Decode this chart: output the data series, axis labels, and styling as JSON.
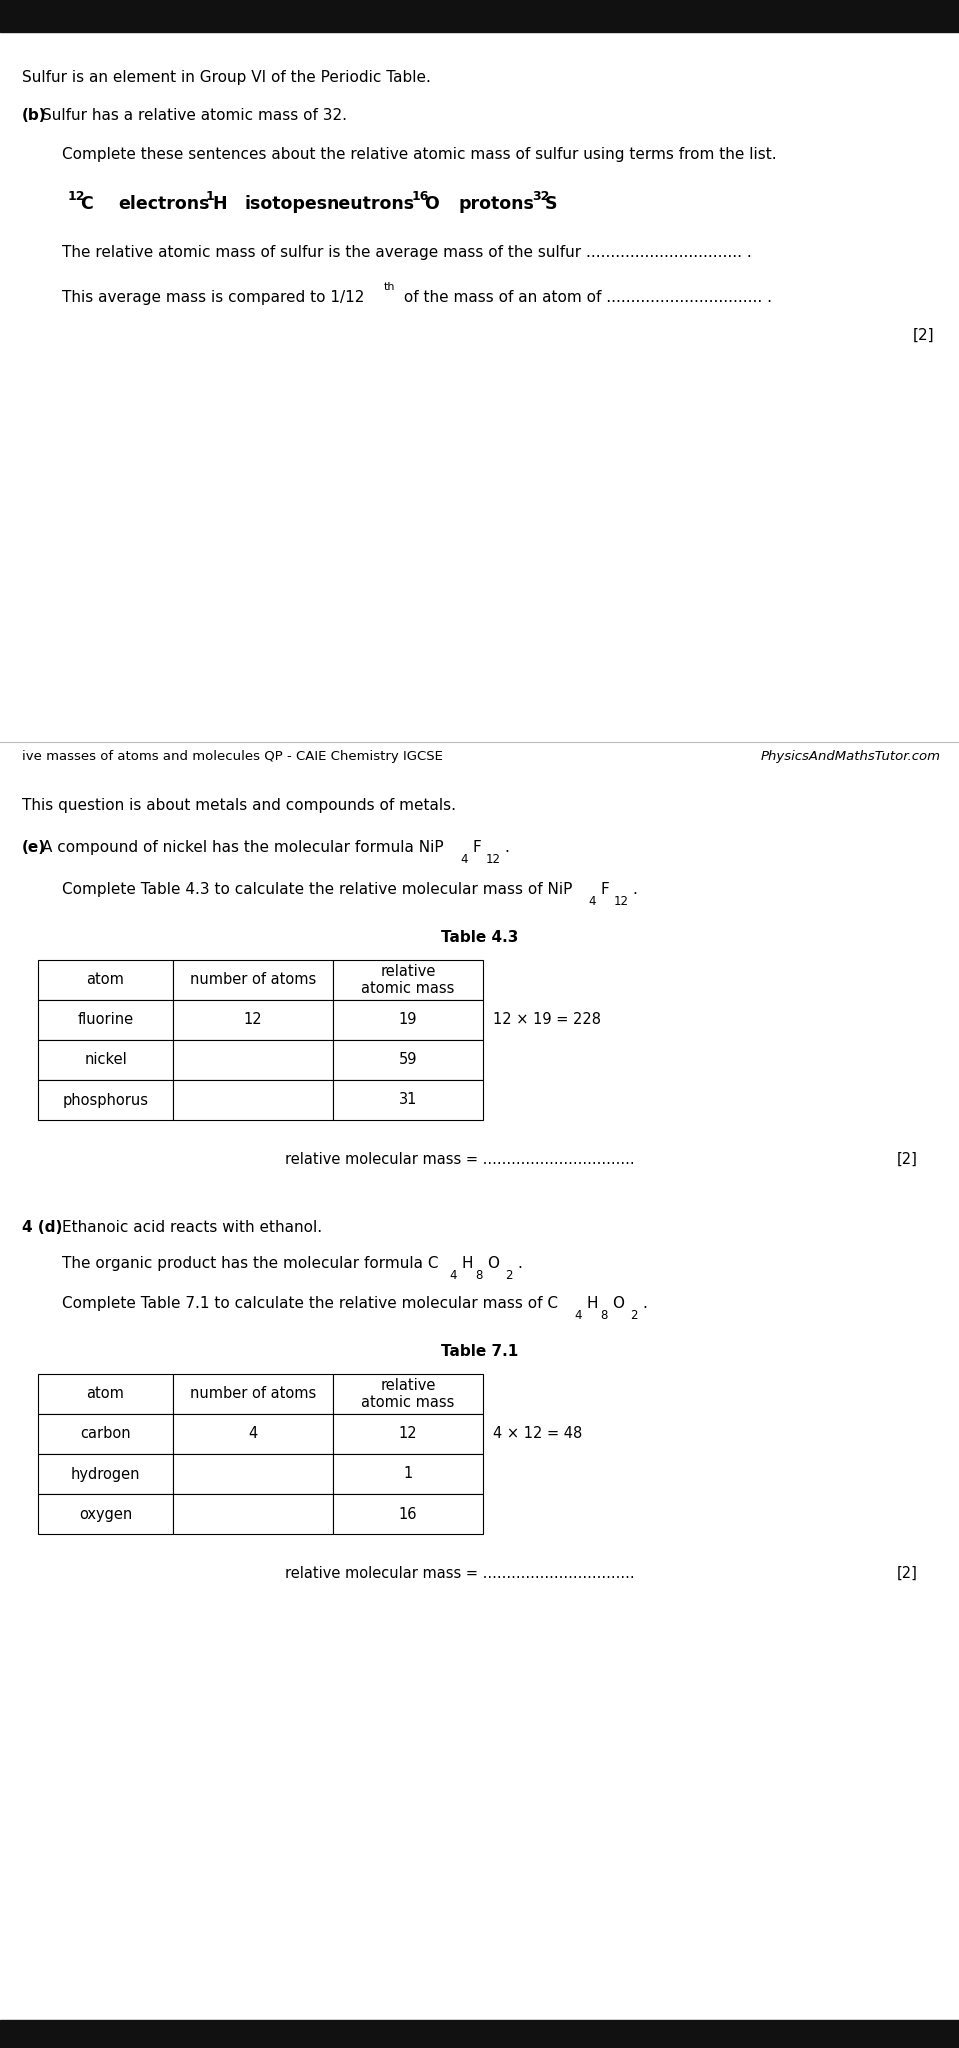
{
  "bg_color": "#ffffff",
  "black_bar_color": "#111111",
  "text_color": "#000000",
  "page_width": 9.59,
  "page_height": 20.48,
  "section1": {
    "intro": "Sulfur is an element in Group VI of the Periodic Table.",
    "b_label": "(b)",
    "b_text": "Sulfur has a relative atomic mass of 32.",
    "complete_text": "Complete these sentences about the relative atomic mass of sulfur using terms from the list.",
    "sentence1_pre": "The relative atomic mass of sulfur is the average mass of the sulfur ",
    "sentence1_dots": "................................",
    "sentence1_end": " .",
    "sentence2_pre": "This average mass is compared to 1/12",
    "sentence2_sup": "th",
    "sentence2_mid": " of the mass of an atom of ",
    "sentence2_dots": "................................",
    "sentence2_end": " .",
    "marks": "[2]"
  },
  "footer": {
    "left": "ive masses of atoms and molecules QP - CAIE Chemistry IGCSE",
    "right": "PhysicsAndMathsTutor.com"
  },
  "section2": {
    "intro": "This question is about metals and compounds of metals.",
    "e_label": "(e)",
    "table43_title": "Table 4.3",
    "table43_rows": [
      [
        "fluorine",
        "12",
        "19",
        "12 × 19 = 228"
      ],
      [
        "nickel",
        "",
        "59",
        ""
      ],
      [
        "phosphorus",
        "",
        "31",
        ""
      ]
    ],
    "rmm_label": "relative molecular mass = ................................",
    "rmm_marks": "[2]"
  },
  "section3": {
    "label": "4 (d)",
    "text1": "Ethanoic acid reacts with ethanol.",
    "table71_title": "Table 7.1",
    "table71_rows": [
      [
        "carbon",
        "4",
        "12",
        "4 × 12 = 48"
      ],
      [
        "hydrogen",
        "",
        "1",
        ""
      ],
      [
        "oxygen",
        "",
        "16",
        ""
      ]
    ],
    "rmm_label": "relative molecular mass = ................................",
    "rmm_marks": "[2]"
  }
}
